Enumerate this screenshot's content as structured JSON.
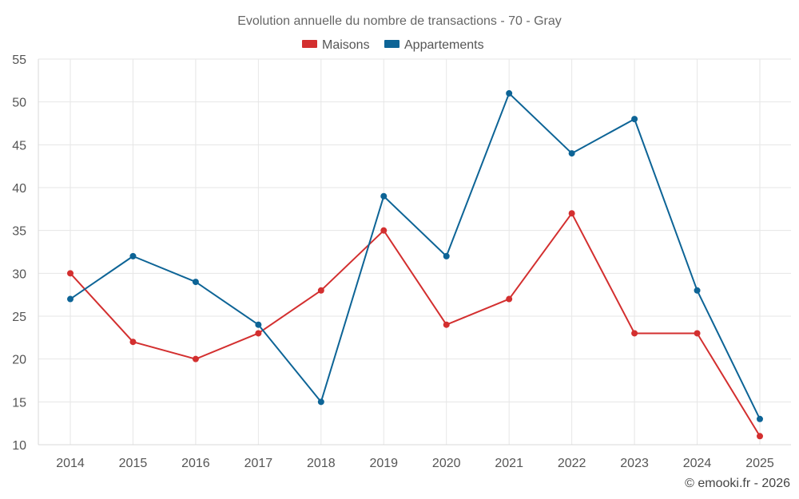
{
  "chart_data": {
    "type": "line",
    "title": "Evolution annuelle du nombre de transactions - 70 - Gray",
    "categories": [
      "2014",
      "2015",
      "2016",
      "2017",
      "2018",
      "2019",
      "2020",
      "2021",
      "2022",
      "2023",
      "2024",
      "2025"
    ],
    "series": [
      {
        "name": "Maisons",
        "color": "#d32f2f",
        "values": [
          30,
          22,
          20,
          23,
          28,
          35,
          24,
          27,
          37,
          23,
          23,
          11
        ]
      },
      {
        "name": "Appartements",
        "color": "#0d6496",
        "values": [
          27,
          32,
          29,
          24,
          15,
          39,
          32,
          51,
          44,
          48,
          28,
          13
        ]
      }
    ],
    "ylim": [
      10,
      55
    ],
    "yticks": [
      10,
      15,
      20,
      25,
      30,
      35,
      40,
      45,
      50,
      55
    ],
    "xlabel": "",
    "ylabel": "",
    "grid": true,
    "legend_position": "top-center"
  },
  "credit": "© emooki.fr - 2026"
}
